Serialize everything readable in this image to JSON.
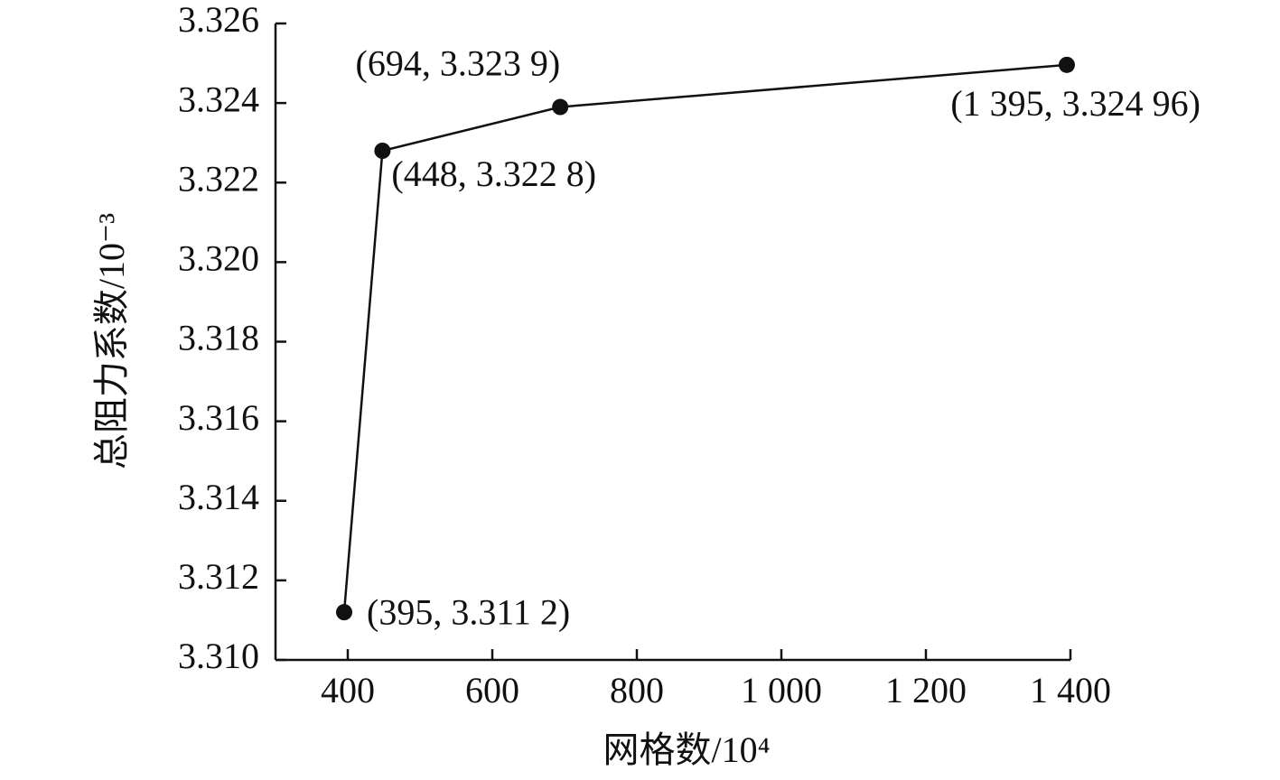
{
  "chart_data": {
    "type": "line",
    "x_label": "网格数/10⁴",
    "y_label": "总阻力系数/10⁻³",
    "x": [
      395,
      448,
      694,
      1395
    ],
    "values": [
      3.3112,
      3.3228,
      3.3239,
      3.32496
    ],
    "value_labels": [
      "(395, 3.311 2)",
      "(448, 3.322 8)",
      "(694, 3.323 9)",
      "(1 395, 3.324 96)"
    ],
    "color": "#111111",
    "xlim": [
      300,
      1400
    ],
    "xticks": [
      400,
      600,
      800,
      {
        "value": 1000,
        "label": "1 000"
      },
      {
        "value": 1200,
        "label": "1 200"
      },
      {
        "value": 1400,
        "label": "1 400"
      }
    ],
    "ylim": [
      3.31,
      3.326
    ],
    "yticks": [
      {
        "value": 3.31,
        "label": "3.310"
      },
      {
        "value": 3.312,
        "label": "3.312"
      },
      {
        "value": 3.314,
        "label": "3.314"
      },
      {
        "value": 3.316,
        "label": "3.316"
      },
      {
        "value": 3.318,
        "label": "3.318"
      },
      {
        "value": 3.32,
        "label": "3.320"
      },
      {
        "value": 3.322,
        "label": "3.322"
      },
      {
        "value": 3.324,
        "label": "3.324"
      },
      {
        "value": 3.326,
        "label": "3.326"
      }
    ]
  }
}
